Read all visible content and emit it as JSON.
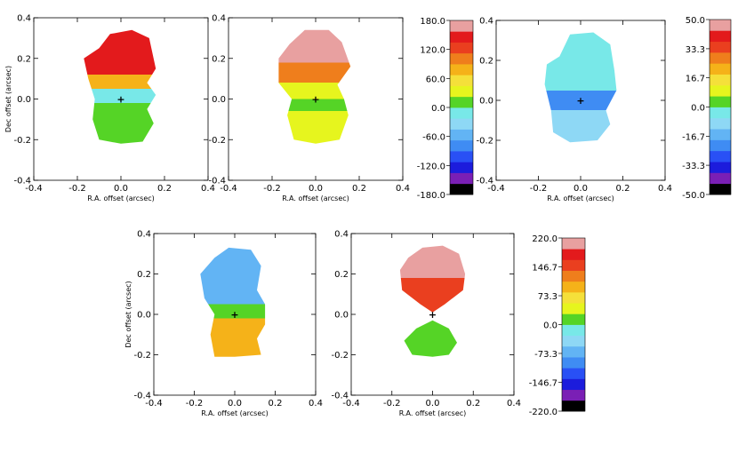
{
  "figure": {
    "description_title": "Velocity field maps with colorbars"
  },
  "chart_data": [
    {
      "type": "heatmap",
      "name": "velocity-map-observed",
      "title": "",
      "xlabel": "R.A. offset (arcsec)",
      "ylabel": "Dec offset (arcsec)",
      "xlim": [
        -0.4,
        0.4
      ],
      "ylim": [
        -0.4,
        0.4
      ],
      "xticks": [
        "-0.4",
        "-0.2",
        "0.0",
        "0.2",
        "0.4"
      ],
      "yticks": [
        "-0.4",
        "-0.2",
        "0.0",
        "0.2",
        "0.4"
      ],
      "show_ylabel": true,
      "center_marker": "+",
      "bands": [
        {
          "from": 0.33,
          "to": 0.12,
          "value": 150
        },
        {
          "from": 0.12,
          "to": 0.05,
          "value": 70
        },
        {
          "from": 0.05,
          "to": -0.02,
          "value": -20
        },
        {
          "from": -0.02,
          "to": -0.1,
          "value": 20
        },
        {
          "from": -0.1,
          "to": -0.22,
          "value": 10
        }
      ]
    },
    {
      "type": "heatmap",
      "name": "velocity-map-model",
      "title": "",
      "xlabel": "R.A. offset (arcsec)",
      "ylabel": "",
      "xlim": [
        -0.4,
        0.4
      ],
      "ylim": [
        -0.4,
        0.4
      ],
      "xticks": [
        "-0.4",
        "-0.2",
        "0.0",
        "0.2",
        "0.4"
      ],
      "yticks": [
        "-0.4",
        "-0.2",
        "0.0",
        "0.2",
        "0.4"
      ],
      "show_ylabel": false,
      "center_marker": "+",
      "bands": [
        {
          "from": 0.34,
          "to": 0.18,
          "value": 160
        },
        {
          "from": 0.18,
          "to": 0.08,
          "value": 90
        },
        {
          "from": 0.08,
          "to": 0.0,
          "value": 30
        },
        {
          "from": 0.0,
          "to": -0.06,
          "value": 5
        },
        {
          "from": -0.06,
          "to": -0.22,
          "value": 40
        }
      ]
    },
    {
      "type": "heatmap",
      "name": "velocity-map-residual",
      "title": "",
      "xlabel": "R.A. offset (arcsec)",
      "ylabel": "",
      "xlim": [
        -0.4,
        0.4
      ],
      "ylim": [
        -0.4,
        0.4
      ],
      "xticks": [
        "-0.4",
        "-0.2",
        "0.0",
        "0.2",
        "0.4"
      ],
      "yticks": [
        "-0.4",
        "-0.2",
        "0.0",
        "0.2",
        "0.4"
      ],
      "show_ylabel": false,
      "center_marker": "+",
      "bands": [
        {
          "from": 0.34,
          "to": 0.05,
          "value": -3
        },
        {
          "from": 0.05,
          "to": -0.05,
          "value": -25
        },
        {
          "from": -0.05,
          "to": -0.2,
          "value": -8
        }
      ]
    },
    {
      "type": "heatmap",
      "name": "velocity-map-component-a",
      "title": "",
      "xlabel": "R.A. offset (arcsec)",
      "ylabel": "Dec offset (arcsec)",
      "xlim": [
        -0.4,
        0.4
      ],
      "ylim": [
        -0.4,
        0.4
      ],
      "xticks": [
        "-0.4",
        "-0.2",
        "0.0",
        "0.2",
        "0.4"
      ],
      "yticks": [
        "-0.4",
        "-0.2",
        "0.0",
        "0.2",
        "0.4"
      ],
      "show_ylabel": true,
      "center_marker": "+",
      "bands": [
        {
          "from": 0.33,
          "to": 0.05,
          "value": -55
        },
        {
          "from": 0.05,
          "to": -0.02,
          "value": 10
        },
        {
          "from": -0.02,
          "to": -0.2,
          "value": 75
        }
      ]
    },
    {
      "type": "heatmap",
      "name": "velocity-map-component-b",
      "title": "",
      "xlabel": "R.A. offset (arcsec)",
      "ylabel": "",
      "xlim": [
        -0.4,
        0.4
      ],
      "ylim": [
        -0.4,
        0.4
      ],
      "xticks": [
        "-0.4",
        "-0.2",
        "0.0",
        "0.2",
        "0.4"
      ],
      "yticks": [
        "-0.4",
        "-0.2",
        "0.0",
        "0.2",
        "0.4"
      ],
      "show_ylabel": false,
      "center_marker": "+",
      "bands": [
        {
          "from": 0.33,
          "to": 0.18,
          "value": 200
        },
        {
          "from": 0.18,
          "to": 0.01,
          "value": 140
        },
        {
          "from": -0.04,
          "to": -0.2,
          "value": 10
        }
      ]
    },
    {
      "type": "colorbar",
      "name": "colorbar-180",
      "vmin": -180.0,
      "vmax": 180.0,
      "ticks": [
        "180.0",
        "120.0",
        "60.0",
        "0.0",
        "-60.0",
        "-120.0",
        "-180.0"
      ]
    },
    {
      "type": "colorbar",
      "name": "colorbar-50",
      "vmin": -50.0,
      "vmax": 50.0,
      "ticks": [
        "50.0",
        "33.3",
        "16.7",
        "0.0",
        "-16.7",
        "-33.3",
        "-50.0"
      ]
    },
    {
      "type": "colorbar",
      "name": "colorbar-220",
      "vmin": -220.0,
      "vmax": 220.0,
      "ticks": [
        "220.0",
        "146.7",
        "73.3",
        "0.0",
        "-73.3",
        "-146.7",
        "-220.0"
      ]
    }
  ],
  "palette": {
    "colors": [
      "#000000",
      "#7a1fb5",
      "#1c1cdc",
      "#2950f5",
      "#3f8cf3",
      "#62b4f4",
      "#8ed8f5",
      "#78e8e8",
      "#55d426",
      "#e6f51e",
      "#f5e03a",
      "#f5b219",
      "#ef7e1c",
      "#ea3f1f",
      "#e31a1c",
      "#e8a0a0"
    ]
  }
}
